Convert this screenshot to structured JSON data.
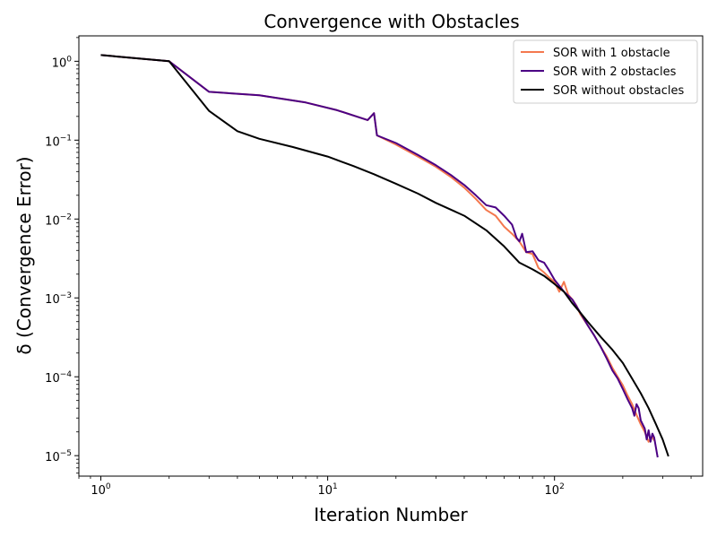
{
  "chart_data": {
    "type": "line",
    "title": "Convergence with Obstacles",
    "xlabel": "Iteration Number",
    "ylabel": "δ (Convergence Error)",
    "xscale": "log",
    "yscale": "log",
    "xlim": [
      0.8,
      450
    ],
    "ylim": [
      5.5e-06,
      2.1
    ],
    "xticks": [
      {
        "value": 1,
        "base": "10",
        "exp": "0"
      },
      {
        "value": 10,
        "base": "10",
        "exp": "1"
      },
      {
        "value": 100,
        "base": "10",
        "exp": "2"
      }
    ],
    "yticks": [
      {
        "value": 1e-05,
        "base": "10",
        "exp": "−5"
      },
      {
        "value": 0.0001,
        "base": "10",
        "exp": "−4"
      },
      {
        "value": 0.001,
        "base": "10",
        "exp": "−3"
      },
      {
        "value": 0.01,
        "base": "10",
        "exp": "−2"
      },
      {
        "value": 0.1,
        "base": "10",
        "exp": "−1"
      },
      {
        "value": 1,
        "base": "10",
        "exp": "0"
      }
    ],
    "legend_position": "top-right",
    "grid": false,
    "series": [
      {
        "name": "SOR with 1 obstacle",
        "color": "#f4784e",
        "points": [
          [
            1,
            1.2
          ],
          [
            2,
            1.0
          ],
          [
            3,
            0.41
          ],
          [
            5,
            0.37
          ],
          [
            8,
            0.3
          ],
          [
            11,
            0.24
          ],
          [
            15,
            0.18
          ],
          [
            16,
            0.22
          ],
          [
            16.5,
            0.115
          ],
          [
            20,
            0.088
          ],
          [
            25,
            0.062
          ],
          [
            30,
            0.046
          ],
          [
            35,
            0.034
          ],
          [
            40,
            0.025
          ],
          [
            45,
            0.018
          ],
          [
            50,
            0.013
          ],
          [
            55,
            0.011
          ],
          [
            60,
            0.008
          ],
          [
            65,
            0.0065
          ],
          [
            70,
            0.0052
          ],
          [
            75,
            0.0038
          ],
          [
            80,
            0.0036
          ],
          [
            85,
            0.0024
          ],
          [
            90,
            0.0021
          ],
          [
            95,
            0.0018
          ],
          [
            100,
            0.0016
          ],
          [
            105,
            0.0012
          ],
          [
            110,
            0.0016
          ],
          [
            115,
            0.0011
          ],
          [
            120,
            0.00095
          ],
          [
            125,
            0.0008
          ],
          [
            130,
            0.00062
          ],
          [
            140,
            0.00045
          ],
          [
            150,
            0.00033
          ],
          [
            160,
            0.00024
          ],
          [
            170,
            0.00018
          ],
          [
            180,
            0.00013
          ],
          [
            190,
            0.0001
          ],
          [
            200,
            7.8e-05
          ],
          [
            210,
            5.8e-05
          ],
          [
            220,
            4.5e-05
          ],
          [
            230,
            3.3e-05
          ],
          [
            240,
            2.5e-05
          ],
          [
            250,
            2e-05
          ],
          [
            260,
            1.5e-05
          ],
          [
            270,
            1.75e-05
          ],
          [
            275,
            1.55e-05
          ]
        ]
      },
      {
        "name": "SOR with 2 obstacles",
        "color": "#4b0084",
        "points": [
          [
            1,
            1.2
          ],
          [
            2,
            1.0
          ],
          [
            3,
            0.41
          ],
          [
            5,
            0.37
          ],
          [
            8,
            0.3
          ],
          [
            11,
            0.24
          ],
          [
            15,
            0.18
          ],
          [
            16,
            0.22
          ],
          [
            16.5,
            0.115
          ],
          [
            20,
            0.092
          ],
          [
            25,
            0.065
          ],
          [
            30,
            0.048
          ],
          [
            35,
            0.036
          ],
          [
            40,
            0.027
          ],
          [
            45,
            0.02
          ],
          [
            50,
            0.015
          ],
          [
            55,
            0.014
          ],
          [
            60,
            0.011
          ],
          [
            65,
            0.0085
          ],
          [
            68,
            0.0058
          ],
          [
            70,
            0.0052
          ],
          [
            72,
            0.0065
          ],
          [
            75,
            0.0038
          ],
          [
            80,
            0.0039
          ],
          [
            85,
            0.003
          ],
          [
            90,
            0.0028
          ],
          [
            95,
            0.0022
          ],
          [
            100,
            0.0017
          ],
          [
            110,
            0.0012
          ],
          [
            120,
            0.00095
          ],
          [
            130,
            0.00065
          ],
          [
            140,
            0.00045
          ],
          [
            150,
            0.00033
          ],
          [
            160,
            0.00024
          ],
          [
            170,
            0.00017
          ],
          [
            180,
            0.00012
          ],
          [
            190,
            9.5e-05
          ],
          [
            200,
            7e-05
          ],
          [
            210,
            5.2e-05
          ],
          [
            220,
            4e-05
          ],
          [
            225,
            3.2e-05
          ],
          [
            230,
            4.5e-05
          ],
          [
            235,
            4e-05
          ],
          [
            240,
            2.8e-05
          ],
          [
            250,
            2.2e-05
          ],
          [
            255,
            1.6e-05
          ],
          [
            260,
            2.1e-05
          ],
          [
            265,
            1.5e-05
          ],
          [
            270,
            1.9e-05
          ],
          [
            275,
            1.7e-05
          ],
          [
            285,
            9.5e-06
          ]
        ]
      },
      {
        "name": "SOR without obstacles",
        "color": "#000000",
        "points": [
          [
            1,
            1.2
          ],
          [
            2,
            1.0
          ],
          [
            3,
            0.235
          ],
          [
            4,
            0.13
          ],
          [
            5,
            0.104
          ],
          [
            7,
            0.082
          ],
          [
            10,
            0.062
          ],
          [
            13,
            0.047
          ],
          [
            16,
            0.037
          ],
          [
            20,
            0.028
          ],
          [
            25,
            0.021
          ],
          [
            30,
            0.016
          ],
          [
            40,
            0.011
          ],
          [
            50,
            0.0072
          ],
          [
            60,
            0.0045
          ],
          [
            70,
            0.0028
          ],
          [
            80,
            0.0023
          ],
          [
            90,
            0.0019
          ],
          [
            100,
            0.0015
          ],
          [
            110,
            0.0012
          ],
          [
            120,
            0.00085
          ],
          [
            130,
            0.00065
          ],
          [
            140,
            0.0005
          ],
          [
            160,
            0.00032
          ],
          [
            180,
            0.00022
          ],
          [
            200,
            0.00015
          ],
          [
            220,
            9.5e-05
          ],
          [
            240,
            6.2e-05
          ],
          [
            260,
            4e-05
          ],
          [
            280,
            2.5e-05
          ],
          [
            300,
            1.6e-05
          ],
          [
            318,
            9.8e-06
          ]
        ]
      }
    ]
  }
}
